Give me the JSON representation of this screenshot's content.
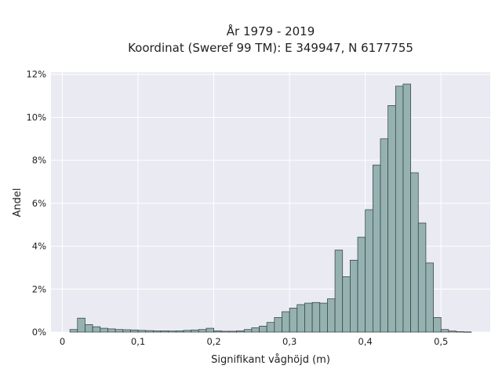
{
  "colors": {
    "background": "#ffffff",
    "plot_background": "#eaeaf2",
    "grid": "#ffffff",
    "bar_fill": "#95b2b1",
    "bar_edge": "#2f3b3b"
  },
  "chart_data": {
    "type": "bar",
    "title": "År 1979 - 2019",
    "subtitle": "Koordinat (Sweref 99 TM): E 349947, N 6177755",
    "xlabel": "Signifikant våghöjd (m)",
    "ylabel": "Andel",
    "xlim": [
      -0.015,
      0.565
    ],
    "ylim": [
      0,
      12.1
    ],
    "grid": true,
    "x_ticks": [
      {
        "value": 0,
        "label": "0"
      },
      {
        "value": 0.1,
        "label": "0,1"
      },
      {
        "value": 0.2,
        "label": "0,2"
      },
      {
        "value": 0.3,
        "label": "0,3"
      },
      {
        "value": 0.4,
        "label": "0,4"
      },
      {
        "value": 0.5,
        "label": "0,5"
      }
    ],
    "y_ticks": [
      {
        "value": 0,
        "label": "0%"
      },
      {
        "value": 2,
        "label": "2%"
      },
      {
        "value": 4,
        "label": "4%"
      },
      {
        "value": 6,
        "label": "6%"
      },
      {
        "value": 8,
        "label": "8%"
      },
      {
        "value": 10,
        "label": "10%"
      },
      {
        "value": 12,
        "label": "12%"
      }
    ],
    "bin_width": 0.01,
    "bin_starts": [
      0.01,
      0.02,
      0.03,
      0.04,
      0.05,
      0.06,
      0.07,
      0.08,
      0.09,
      0.1,
      0.11,
      0.12,
      0.13,
      0.14,
      0.15,
      0.16,
      0.17,
      0.18,
      0.19,
      0.2,
      0.21,
      0.22,
      0.23,
      0.24,
      0.25,
      0.26,
      0.27,
      0.28,
      0.29,
      0.3,
      0.31,
      0.32,
      0.33,
      0.34,
      0.35,
      0.36,
      0.37,
      0.38,
      0.39,
      0.4,
      0.41,
      0.42,
      0.43,
      0.44,
      0.45,
      0.46,
      0.47,
      0.48,
      0.49,
      0.5,
      0.51,
      0.52,
      0.53
    ],
    "values": [
      0.12,
      0.65,
      0.35,
      0.25,
      0.18,
      0.15,
      0.12,
      0.11,
      0.1,
      0.08,
      0.07,
      0.06,
      0.06,
      0.05,
      0.06,
      0.08,
      0.1,
      0.12,
      0.18,
      0.06,
      0.04,
      0.04,
      0.06,
      0.12,
      0.2,
      0.28,
      0.45,
      0.68,
      0.95,
      1.12,
      1.28,
      1.35,
      1.38,
      1.35,
      1.55,
      3.82,
      2.58,
      3.35,
      4.42,
      5.7,
      7.78,
      9.0,
      10.55,
      11.45,
      11.55,
      7.42,
      5.08,
      3.22,
      0.68,
      0.12,
      0.05,
      0.02,
      0.01
    ]
  }
}
